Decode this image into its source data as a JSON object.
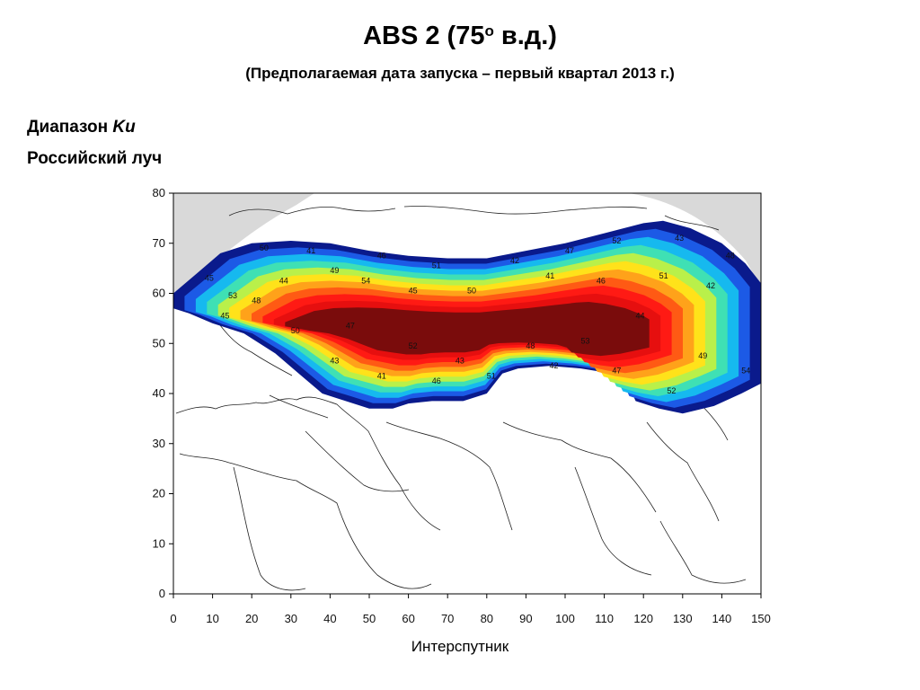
{
  "header": {
    "title_main": "ABS 2 (75",
    "title_sup": "о",
    "title_end": " в.д.)",
    "subtitle": "(Предполагаемая дата запуска – первый квартал 2013 г.)"
  },
  "info": {
    "band_prefix": "Диапазон ",
    "band_name": "Ku",
    "beam": "Российский луч"
  },
  "map": {
    "lat_ticks": [
      0,
      10,
      20,
      30,
      40,
      50,
      60,
      70,
      80
    ],
    "lon_ticks": [
      0,
      10,
      20,
      30,
      40,
      50,
      60,
      70,
      80,
      90,
      100,
      110,
      120,
      130,
      140,
      150
    ],
    "lon_range": [
      0,
      150
    ],
    "lat_range": [
      0,
      80
    ],
    "colors": {
      "outside": "#d9d9d9",
      "contours": [
        "#0a1a8c",
        "#1c5ae6",
        "#16b9ef",
        "#3fe0b4",
        "#b9f04a",
        "#ffe21a",
        "#ffa21a",
        "#ff5a14",
        "#ff1a14",
        "#e60f0f",
        "#7a0c0c"
      ]
    },
    "contour_labels": [
      "41",
      "42",
      "43",
      "44",
      "45",
      "46",
      "47",
      "48",
      "49",
      "50",
      "51",
      "52",
      "53",
      "54"
    ]
  },
  "footer": {
    "credit": "Интерспутник"
  }
}
